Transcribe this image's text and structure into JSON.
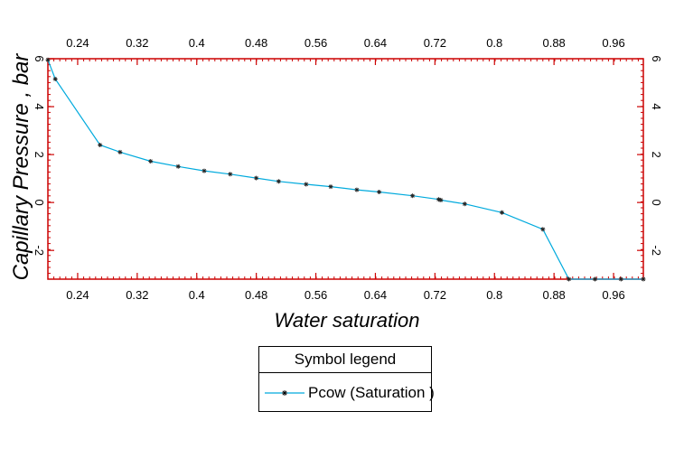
{
  "chart_data": {
    "type": "line",
    "xlabel": "Water saturation",
    "ylabel": "Capillary Pressure , bar",
    "xlim": [
      0.2,
      1.0
    ],
    "ylim": [
      -3.2,
      6.0
    ],
    "x_ticks": [
      "0.24",
      "0.32",
      "0.4",
      "0.48",
      "0.56",
      "0.64",
      "0.72",
      "0.8",
      "0.88",
      "0.96"
    ],
    "y_ticks": [
      "6",
      "4",
      "2",
      "0",
      "-2"
    ],
    "grid": false,
    "frame_color": "#cc0000",
    "series": [
      {
        "name": "Pcow (Saturation )",
        "color": "#00aadd",
        "marker": "star",
        "x": [
          0.2,
          0.21,
          0.27,
          0.297,
          0.338,
          0.375,
          0.41,
          0.445,
          0.48,
          0.51,
          0.547,
          0.58,
          0.615,
          0.645,
          0.69,
          0.725,
          0.728,
          0.76,
          0.81,
          0.865,
          0.9,
          0.935,
          0.97,
          1.0
        ],
        "values": [
          5.95,
          5.15,
          2.4,
          2.1,
          1.72,
          1.5,
          1.32,
          1.18,
          1.02,
          0.88,
          0.76,
          0.66,
          0.53,
          0.44,
          0.28,
          0.13,
          0.1,
          -0.06,
          -0.42,
          -1.12,
          -3.2,
          -3.2,
          -3.2,
          -3.2
        ]
      }
    ]
  },
  "legend": {
    "title": "Symbol legend",
    "entries": [
      {
        "label": "Pcow (Saturation )",
        "color": "#00aadd"
      }
    ]
  }
}
